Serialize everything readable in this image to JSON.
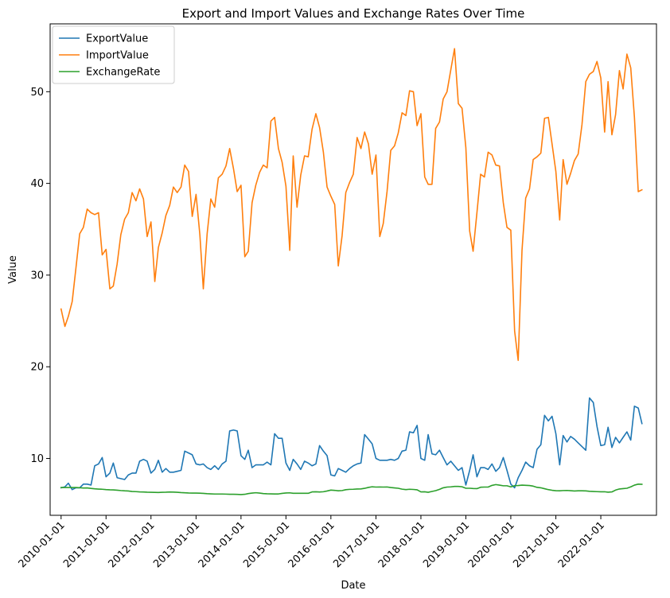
{
  "chart_data": {
    "type": "line",
    "title": "Export and Import Values and Exchange Rates Over Time",
    "xlabel": "Date",
    "ylabel": "Value",
    "x_tick_labels": [
      "2010-01-01",
      "2011-01-01",
      "2012-01-01",
      "2013-01-01",
      "2014-01-01",
      "2015-01-01",
      "2016-01-01",
      "2017-01-01",
      "2018-01-01",
      "2019-01-01",
      "2020-01-01",
      "2021-01-01",
      "2022-01-01"
    ],
    "y_ticks": [
      10,
      20,
      30,
      40,
      50
    ],
    "y_tick_labels": [
      "10",
      "20",
      "30",
      "40",
      "50"
    ],
    "xlim": [
      "2009-10-04",
      "2023-03-29"
    ],
    "ylim": [
      3.8,
      57.4
    ],
    "legend_position": "upper left",
    "grid": false,
    "x": [
      "2010-01-01",
      "2010-02-01",
      "2010-03-01",
      "2010-04-01",
      "2010-05-01",
      "2010-06-01",
      "2010-07-01",
      "2010-08-01",
      "2010-09-01",
      "2010-10-01",
      "2010-11-01",
      "2010-12-01",
      "2011-01-01",
      "2011-02-01",
      "2011-03-01",
      "2011-04-01",
      "2011-05-01",
      "2011-06-01",
      "2011-07-01",
      "2011-08-01",
      "2011-09-01",
      "2011-10-01",
      "2011-11-01",
      "2011-12-01",
      "2012-01-01",
      "2012-02-01",
      "2012-03-01",
      "2012-04-01",
      "2012-05-01",
      "2012-06-01",
      "2012-07-01",
      "2012-08-01",
      "2012-09-01",
      "2012-10-01",
      "2012-11-01",
      "2012-12-01",
      "2013-01-01",
      "2013-02-01",
      "2013-03-01",
      "2013-04-01",
      "2013-05-01",
      "2013-06-01",
      "2013-07-01",
      "2013-08-01",
      "2013-09-01",
      "2013-10-01",
      "2013-11-01",
      "2013-12-01",
      "2014-01-01",
      "2014-02-01",
      "2014-03-01",
      "2014-04-01",
      "2014-05-01",
      "2014-06-01",
      "2014-07-01",
      "2014-08-01",
      "2014-09-01",
      "2014-10-01",
      "2014-11-01",
      "2014-12-01",
      "2015-01-01",
      "2015-02-01",
      "2015-03-01",
      "2015-04-01",
      "2015-05-01",
      "2015-06-01",
      "2015-07-01",
      "2015-08-01",
      "2015-09-01",
      "2015-10-01",
      "2015-11-01",
      "2015-12-01",
      "2016-01-01",
      "2016-02-01",
      "2016-03-01",
      "2016-04-01",
      "2016-05-01",
      "2016-06-01",
      "2016-07-01",
      "2016-08-01",
      "2016-09-01",
      "2016-10-01",
      "2016-11-01",
      "2016-12-01",
      "2017-01-01",
      "2017-02-01",
      "2017-03-01",
      "2017-04-01",
      "2017-05-01",
      "2017-06-01",
      "2017-07-01",
      "2017-08-01",
      "2017-09-01",
      "2017-10-01",
      "2017-11-01",
      "2017-12-01",
      "2018-01-01",
      "2018-02-01",
      "2018-03-01",
      "2018-04-01",
      "2018-05-01",
      "2018-06-01",
      "2018-07-01",
      "2018-08-01",
      "2018-09-01",
      "2018-10-01",
      "2018-11-01",
      "2018-12-01",
      "2019-01-01",
      "2019-02-01",
      "2019-03-01",
      "2019-04-01",
      "2019-05-01",
      "2019-06-01",
      "2019-07-01",
      "2019-08-01",
      "2019-09-01",
      "2019-10-01",
      "2019-11-01",
      "2019-12-01",
      "2020-01-01",
      "2020-02-01",
      "2020-03-01",
      "2020-04-01",
      "2020-05-01",
      "2020-06-01",
      "2020-07-01",
      "2020-08-01",
      "2020-09-01",
      "2020-10-01",
      "2020-11-01",
      "2020-12-01",
      "2021-01-01",
      "2021-02-01",
      "2021-03-01",
      "2021-04-01",
      "2021-05-01",
      "2021-06-01",
      "2021-07-01",
      "2021-08-01",
      "2021-09-01",
      "2021-10-01",
      "2021-11-01",
      "2021-12-01",
      "2022-01-01",
      "2022-02-01",
      "2022-03-01",
      "2022-04-01",
      "2022-05-01",
      "2022-06-01",
      "2022-07-01",
      "2022-08-01",
      "2022-09-01",
      "2022-10-01",
      "2022-11-01",
      "2022-12-01"
    ],
    "series": [
      {
        "name": "ExportValue",
        "color": "#1f77b4",
        "values": [
          6.8,
          6.9,
          7.3,
          6.6,
          6.8,
          6.8,
          7.2,
          7.2,
          7.1,
          9.2,
          9.4,
          10.1,
          8.0,
          8.4,
          9.5,
          7.9,
          7.8,
          7.7,
          8.2,
          8.4,
          8.4,
          9.7,
          9.9,
          9.7,
          8.4,
          8.8,
          9.8,
          8.5,
          8.9,
          8.5,
          8.5,
          8.6,
          8.7,
          10.8,
          10.6,
          10.4,
          9.4,
          9.3,
          9.4,
          9.0,
          8.8,
          9.2,
          8.8,
          9.4,
          9.7,
          13.0,
          13.1,
          13.0,
          10.3,
          9.9,
          10.9,
          9.0,
          9.3,
          9.3,
          9.3,
          9.6,
          9.3,
          12.7,
          12.2,
          12.2,
          9.5,
          8.7,
          9.9,
          9.4,
          8.8,
          9.7,
          9.5,
          9.2,
          9.4,
          11.4,
          10.8,
          10.3,
          8.2,
          8.1,
          8.9,
          8.7,
          8.5,
          8.9,
          9.2,
          9.4,
          9.5,
          12.6,
          12.1,
          11.6,
          10.0,
          9.8,
          9.8,
          9.8,
          9.9,
          9.8,
          10.0,
          10.8,
          10.9,
          12.9,
          12.8,
          13.6,
          10.0,
          9.8,
          12.6,
          10.5,
          10.4,
          10.9,
          10.1,
          9.3,
          9.7,
          9.2,
          8.7,
          9.0,
          7.1,
          8.7,
          10.4,
          8.0,
          9.0,
          9.0,
          8.8,
          9.4,
          8.6,
          9.0,
          10.1,
          8.7,
          7.2,
          6.8,
          7.9,
          8.7,
          9.6,
          9.2,
          9.0,
          11.0,
          11.5,
          14.7,
          14.1,
          14.6,
          12.7,
          9.3,
          12.5,
          11.8,
          12.4,
          12.1,
          11.7,
          11.3,
          10.9,
          16.6,
          16.1,
          13.5,
          11.4,
          11.5,
          13.4,
          11.2,
          12.3,
          11.7,
          12.3,
          12.9,
          12.0,
          15.7,
          15.5,
          13.8
        ]
      },
      {
        "name": "ImportValue",
        "color": "#ff7f0e",
        "values": [
          26.3,
          24.4,
          25.5,
          27.1,
          30.7,
          34.5,
          35.2,
          37.2,
          36.8,
          36.6,
          36.8,
          32.2,
          32.8,
          28.5,
          28.8,
          31.2,
          34.4,
          36.1,
          36.8,
          39.0,
          38.1,
          39.4,
          38.3,
          34.2,
          35.8,
          29.3,
          33.0,
          34.6,
          36.5,
          37.6,
          39.6,
          39.0,
          39.6,
          42.0,
          41.3,
          36.4,
          38.8,
          34.4,
          28.5,
          34.5,
          38.3,
          37.4,
          40.6,
          41.0,
          41.9,
          43.8,
          41.6,
          39.1,
          39.8,
          32.0,
          32.6,
          37.9,
          39.8,
          41.2,
          42.0,
          41.7,
          46.8,
          47.2,
          43.8,
          42.3,
          39.7,
          32.7,
          43.0,
          37.4,
          40.9,
          43.0,
          42.9,
          45.9,
          47.6,
          46.1,
          43.4,
          39.6,
          38.6,
          37.7,
          31.0,
          34.3,
          39.0,
          40.1,
          41.0,
          45.0,
          43.8,
          45.6,
          44.3,
          41.0,
          43.1,
          34.2,
          35.6,
          39.1,
          43.6,
          44.1,
          45.5,
          47.7,
          47.4,
          50.1,
          50.0,
          46.3,
          47.6,
          40.7,
          39.9,
          39.9,
          46.0,
          46.7,
          49.2,
          50.0,
          52.4,
          54.7,
          48.7,
          48.2,
          43.9,
          34.8,
          32.6,
          36.8,
          41.0,
          40.7,
          43.4,
          43.1,
          42.0,
          41.9,
          37.9,
          35.2,
          34.9,
          23.9,
          20.7,
          32.7,
          38.4,
          39.4,
          42.6,
          42.9,
          43.3,
          47.1,
          47.2,
          44.3,
          41.3,
          36.0,
          42.6,
          39.9,
          41.1,
          42.5,
          43.2,
          46.4,
          51.1,
          51.9,
          52.2,
          53.3,
          51.5,
          45.6,
          51.1,
          45.3,
          47.5,
          52.3,
          50.3,
          54.1,
          52.6,
          47.2,
          39.1,
          39.3
        ]
      },
      {
        "name": "ExchangeRate",
        "color": "#2ca02c",
        "values": [
          6.83,
          6.83,
          6.83,
          6.83,
          6.83,
          6.81,
          6.78,
          6.79,
          6.73,
          6.69,
          6.66,
          6.64,
          6.6,
          6.58,
          6.57,
          6.54,
          6.5,
          6.47,
          6.45,
          6.4,
          6.38,
          6.35,
          6.34,
          6.32,
          6.31,
          6.3,
          6.29,
          6.31,
          6.32,
          6.34,
          6.33,
          6.31,
          6.28,
          6.26,
          6.23,
          6.22,
          6.22,
          6.21,
          6.19,
          6.16,
          6.14,
          6.12,
          6.12,
          6.12,
          6.11,
          6.09,
          6.09,
          6.08,
          6.06,
          6.09,
          6.17,
          6.22,
          6.26,
          6.22,
          6.17,
          6.15,
          6.14,
          6.13,
          6.13,
          6.19,
          6.23,
          6.25,
          6.2,
          6.2,
          6.2,
          6.2,
          6.2,
          6.35,
          6.36,
          6.34,
          6.37,
          6.45,
          6.55,
          6.52,
          6.47,
          6.5,
          6.59,
          6.63,
          6.64,
          6.67,
          6.68,
          6.74,
          6.84,
          6.91,
          6.88,
          6.89,
          6.88,
          6.89,
          6.83,
          6.79,
          6.75,
          6.65,
          6.6,
          6.64,
          6.62,
          6.58,
          6.35,
          6.36,
          6.31,
          6.4,
          6.49,
          6.63,
          6.8,
          6.88,
          6.9,
          6.95,
          6.95,
          6.91,
          6.75,
          6.75,
          6.72,
          6.71,
          6.86,
          6.88,
          6.88,
          7.06,
          7.15,
          7.09,
          7.02,
          7.02,
          6.9,
          7.03,
          7.05,
          7.09,
          7.07,
          7.05,
          6.98,
          6.85,
          6.8,
          6.7,
          6.6,
          6.53,
          6.48,
          6.47,
          6.5,
          6.51,
          6.48,
          6.45,
          6.47,
          6.47,
          6.46,
          6.42,
          6.4,
          6.38,
          6.36,
          6.37,
          6.32,
          6.35,
          6.55,
          6.67,
          6.71,
          6.75,
          6.9,
          7.09,
          7.2,
          7.18
        ]
      }
    ]
  }
}
